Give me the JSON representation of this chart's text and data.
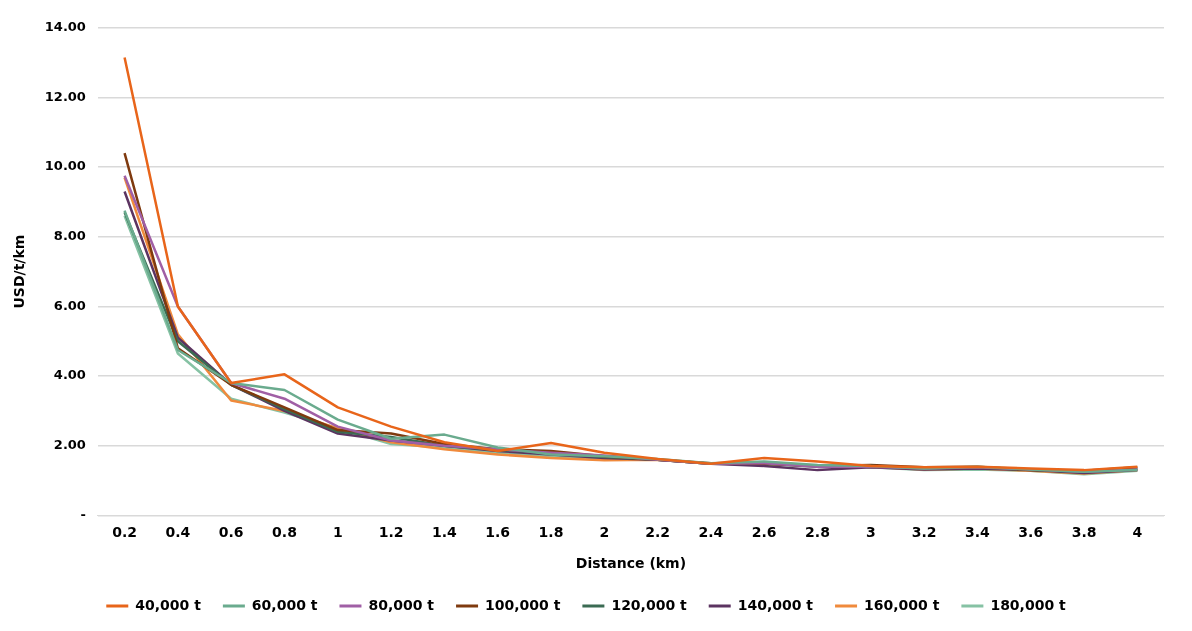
{
  "chart_data": {
    "type": "line",
    "xlabel": "Distance (km)",
    "ylabel": "USD/t/km",
    "categories": [
      "0.2",
      "0.4",
      "0.6",
      "0.8",
      "1",
      "1.2",
      "1.4",
      "1.6",
      "1.8",
      "2",
      "2.2",
      "2.4",
      "2.6",
      "2.8",
      "3",
      "3.2",
      "3.4",
      "3.6",
      "3.8",
      "4"
    ],
    "ylim": [
      0,
      14
    ],
    "yticks": [
      {
        "value": 0,
        "label": "-"
      },
      {
        "value": 2,
        "label": "2.00"
      },
      {
        "value": 4,
        "label": "4.00"
      },
      {
        "value": 6,
        "label": "6.00"
      },
      {
        "value": 8,
        "label": "8.00"
      },
      {
        "value": 10,
        "label": "10.00"
      },
      {
        "value": 12,
        "label": "12.00"
      },
      {
        "value": 14,
        "label": "14.00"
      }
    ],
    "grid": "y",
    "legend": "bottom",
    "marker": "none",
    "line_style": "solid",
    "series": [
      {
        "name": "40,000 t",
        "color": "#e8651a",
        "values": [
          13.15,
          6.0,
          3.8,
          4.05,
          3.1,
          2.55,
          2.1,
          1.85,
          2.08,
          1.8,
          1.62,
          1.48,
          1.65,
          1.55,
          1.42,
          1.38,
          1.4,
          1.35,
          1.3,
          1.4
        ]
      },
      {
        "name": "60,000 t",
        "color": "#6aab8e",
        "values": [
          8.75,
          4.75,
          3.8,
          3.6,
          2.75,
          2.2,
          2.32,
          1.95,
          1.75,
          1.7,
          1.62,
          1.5,
          1.55,
          1.45,
          1.42,
          1.35,
          1.4,
          1.32,
          1.25,
          1.3
        ]
      },
      {
        "name": "80,000 t",
        "color": "#a05fa5",
        "values": [
          9.75,
          6.0,
          3.8,
          3.35,
          2.55,
          2.15,
          2.0,
          1.9,
          1.8,
          1.72,
          1.6,
          1.48,
          1.5,
          1.4,
          1.4,
          1.35,
          1.38,
          1.32,
          1.25,
          1.32
        ]
      },
      {
        "name": "100,000 t",
        "color": "#7f3a0f",
        "values": [
          10.4,
          4.8,
          3.75,
          3.1,
          2.45,
          2.35,
          2.05,
          1.9,
          1.85,
          1.7,
          1.6,
          1.5,
          1.48,
          1.42,
          1.45,
          1.38,
          1.4,
          1.3,
          1.28,
          1.38
        ]
      },
      {
        "name": "120,000 t",
        "color": "#3b6b53",
        "values": [
          8.7,
          5.0,
          3.75,
          3.05,
          2.4,
          2.25,
          2.0,
          1.88,
          1.8,
          1.68,
          1.6,
          1.48,
          1.48,
          1.4,
          1.42,
          1.35,
          1.38,
          1.3,
          1.25,
          1.35
        ]
      },
      {
        "name": "140,000 t",
        "color": "#5c3461",
        "values": [
          9.3,
          5.1,
          3.75,
          3.0,
          2.35,
          2.15,
          2.0,
          1.85,
          1.75,
          1.65,
          1.6,
          1.48,
          1.42,
          1.3,
          1.38,
          1.32,
          1.35,
          1.3,
          1.22,
          1.3
        ]
      },
      {
        "name": "160,000 t",
        "color": "#f08a3c",
        "values": [
          9.7,
          5.2,
          3.3,
          3.0,
          2.5,
          2.1,
          1.9,
          1.75,
          1.65,
          1.58,
          1.6,
          1.48,
          1.5,
          1.42,
          1.4,
          1.32,
          1.35,
          1.28,
          1.2,
          1.3
        ]
      },
      {
        "name": "180,000 t",
        "color": "#86c2a4",
        "values": [
          8.6,
          4.65,
          3.35,
          2.95,
          2.5,
          2.05,
          1.95,
          1.8,
          1.7,
          1.62,
          1.6,
          1.48,
          1.5,
          1.42,
          1.38,
          1.3,
          1.32,
          1.28,
          1.18,
          1.28
        ]
      }
    ]
  }
}
